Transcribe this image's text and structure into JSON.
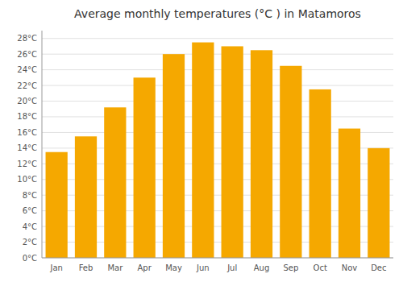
{
  "chart_data": {
    "type": "bar",
    "title": "Average monthly temperatures (°C ) in Matamoros",
    "categories": [
      "Jan",
      "Feb",
      "Mar",
      "Apr",
      "May",
      "Jun",
      "Jul",
      "Aug",
      "Sep",
      "Oct",
      "Nov",
      "Dec"
    ],
    "values": [
      13.5,
      15.5,
      19.2,
      23.0,
      26.0,
      27.5,
      27.0,
      26.5,
      24.5,
      21.5,
      16.5,
      14.0
    ],
    "color": "#F5A800",
    "ylim": [
      0,
      29
    ],
    "yticks": [
      {
        "value": 0,
        "label": "0°C"
      },
      {
        "value": 2,
        "label": "2°C"
      },
      {
        "value": 4,
        "label": "4°C"
      },
      {
        "value": 6,
        "label": "6°C"
      },
      {
        "value": 8,
        "label": "8°C"
      },
      {
        "value": 10,
        "label": "10°C"
      },
      {
        "value": 12,
        "label": "12°C"
      },
      {
        "value": 14,
        "label": "14°C"
      },
      {
        "value": 16,
        "label": "16°C"
      },
      {
        "value": 18,
        "label": "18°C"
      },
      {
        "value": 20,
        "label": "20°C"
      },
      {
        "value": 22,
        "label": "22°C"
      },
      {
        "value": 24,
        "label": "24°C"
      },
      {
        "value": 26,
        "label": "26°C"
      },
      {
        "value": 28,
        "label": "28°C"
      }
    ],
    "grid": true
  }
}
